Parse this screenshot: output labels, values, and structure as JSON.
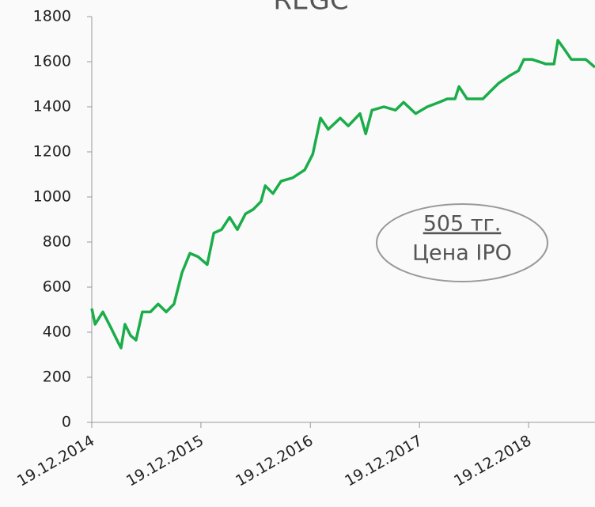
{
  "chart_data": {
    "type": "line",
    "title": "REGC",
    "x": [
      "2014-12-19",
      "2014-12-30",
      "2015-01-25",
      "2015-02-21",
      "2015-03-19",
      "2015-03-27",
      "2015-04-09",
      "2015-04-28",
      "2015-05-16",
      "2015-06-06",
      "2015-07-03",
      "2015-07-29",
      "2015-08-25",
      "2015-09-20",
      "2015-10-17",
      "2015-11-12",
      "2015-12-09",
      "2016-01-09",
      "2016-01-31",
      "2016-02-26",
      "2016-03-24",
      "2016-04-19",
      "2016-05-16",
      "2016-06-11",
      "2016-07-07",
      "2016-07-21",
      "2016-08-16",
      "2016-09-12",
      "2016-10-21",
      "2016-11-30",
      "2016-12-27",
      "2017-01-22",
      "2017-02-17",
      "2017-03-29",
      "2017-04-25",
      "2017-06-03",
      "2017-06-22",
      "2017-07-13",
      "2017-08-22",
      "2017-09-30",
      "2017-10-27",
      "2017-12-06",
      "2018-01-14",
      "2018-02-23",
      "2018-03-22",
      "2018-04-17",
      "2018-04-30",
      "2018-05-27",
      "2018-07-19",
      "2018-08-14",
      "2018-09-10",
      "2018-10-19",
      "2018-11-15",
      "2018-12-03",
      "2018-12-30",
      "2019-02-15",
      "2019-03-14",
      "2019-03-27",
      "2019-04-15",
      "2019-05-11",
      "2019-06-01",
      "2019-06-28",
      "2019-07-29"
    ],
    "series": [
      {
        "name": "REGC",
        "color": "#1aad4a",
        "values": [
          505,
          435,
          490,
          420,
          350,
          330,
          435,
          385,
          365,
          490,
          490,
          525,
          490,
          525,
          665,
          750,
          735,
          700,
          840,
          855,
          910,
          855,
          925,
          945,
          980,
          1050,
          1015,
          1070,
          1085,
          1120,
          1190,
          1350,
          1300,
          1350,
          1315,
          1370,
          1280,
          1385,
          1400,
          1385,
          1420,
          1370,
          1400,
          1420,
          1435,
          1435,
          1490,
          1435,
          1435,
          1470,
          1505,
          1540,
          1560,
          1610,
          1610,
          1590,
          1590,
          1695,
          1660,
          1610,
          1610,
          1610,
          1575
        ]
      }
    ],
    "xlim": [
      "2014-12-19",
      "2019-07-29"
    ],
    "xticks": [
      {
        "value": "2014-12-19",
        "label": "19.12.2014"
      },
      {
        "value": "2015-12-19",
        "label": "19.12.2015"
      },
      {
        "value": "2016-12-19",
        "label": "19.12.2016"
      },
      {
        "value": "2017-12-19",
        "label": "19.12.2017"
      },
      {
        "value": "2018-12-19",
        "label": "19.12.2018"
      }
    ],
    "ylim": [
      0,
      1800
    ],
    "yticks": [
      0,
      200,
      400,
      600,
      800,
      1000,
      1200,
      1400,
      1600,
      1800
    ],
    "annotations": [
      "505 тг.",
      "Цена IPO"
    ]
  }
}
